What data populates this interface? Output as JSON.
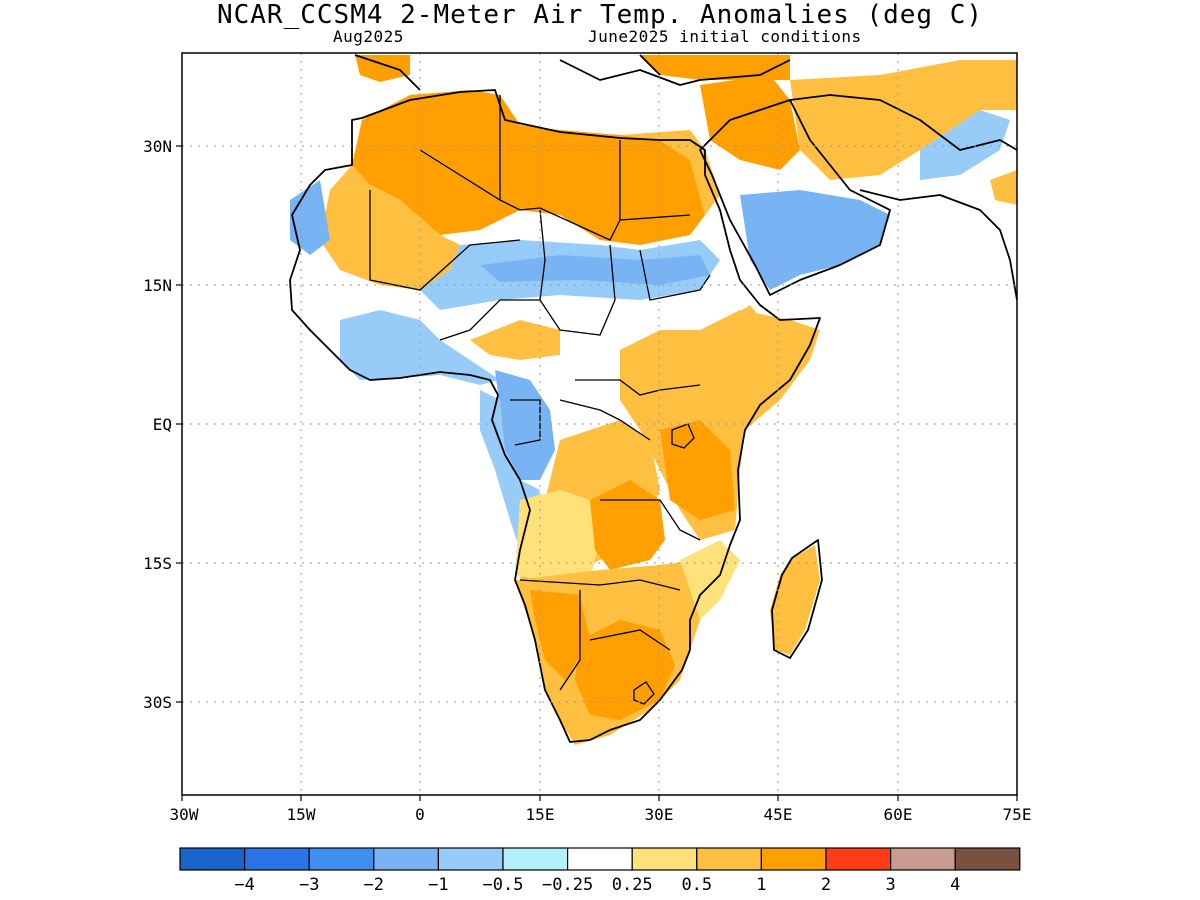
{
  "map": {
    "title": "NCAR_CCSM4 2-Meter Air Temp. Anomalies (deg C)",
    "valid_month": "Aug2025",
    "init_conditions": "June2025 initial conditions",
    "lat_labels": [
      "30N",
      "15N",
      "EQ",
      "15S",
      "30S"
    ],
    "lon_labels": [
      "30W",
      "15W",
      "0",
      "15E",
      "30E",
      "45E",
      "60E",
      "75E"
    ],
    "extent": {
      "lon_min": -30,
      "lon_max": 75,
      "lat_min": -40,
      "lat_max": 40
    },
    "grid": "dotted"
  },
  "colorbar": {
    "labels": [
      "-4",
      "-3",
      "-2",
      "-1",
      "-0.5",
      "-0.25",
      "0.25",
      "0.5",
      "1",
      "2",
      "3",
      "4"
    ],
    "colors": [
      "#1a64cc",
      "#2a72e6",
      "#3f8ff0",
      "#78b4f4",
      "#98ccf8",
      "#b4f0fa",
      "#ffffff",
      "#ffe17a",
      "#ffbf40",
      "#ffa000",
      "#ff3c14",
      "#c89c90",
      "#7a5040"
    ]
  },
  "anomaly_regions": [
    {
      "name": "north-africa-warm",
      "value": 1.0
    },
    {
      "name": "sahel-cool",
      "value": -0.5
    },
    {
      "name": "arabia-cool",
      "value": -1.0
    },
    {
      "name": "southern-africa-warm",
      "value": 1.0
    },
    {
      "name": "congo-cool",
      "value": -1.0
    },
    {
      "name": "east-africa-warm",
      "value": 0.5
    },
    {
      "name": "madagascar-warm",
      "value": 0.5
    }
  ]
}
